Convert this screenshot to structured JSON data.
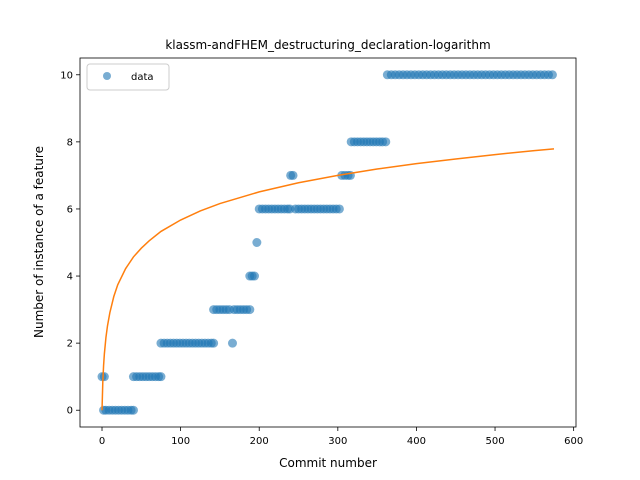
{
  "chart_data": {
    "type": "scatter",
    "title": "klassm-andFHEM_destructuring_declaration-logarithm",
    "xlabel": "Commit number",
    "ylabel": "Number of instance of a feature",
    "xlim": [
      -28,
      603
    ],
    "ylim": [
      -0.5,
      10.5
    ],
    "xticks": [
      0,
      100,
      200,
      300,
      400,
      500,
      600
    ],
    "yticks": [
      0,
      2,
      4,
      6,
      8,
      10
    ],
    "grid": false,
    "legend": {
      "placement": "top-left",
      "entries": [
        "data"
      ]
    },
    "colors": {
      "data": "#1f77b4",
      "fit": "#ff7f0e"
    },
    "series": [
      {
        "name": "data",
        "kind": "scatter",
        "points": [
          [
            0,
            1
          ],
          [
            3,
            1
          ],
          [
            2,
            0
          ],
          [
            5,
            0
          ],
          [
            9,
            0
          ],
          [
            13,
            0
          ],
          [
            17,
            0
          ],
          [
            21,
            0
          ],
          [
            25,
            0
          ],
          [
            29,
            0
          ],
          [
            33,
            0
          ],
          [
            37,
            0
          ],
          [
            40,
            0
          ],
          [
            40,
            1
          ],
          [
            44,
            1
          ],
          [
            48,
            1
          ],
          [
            52,
            1
          ],
          [
            56,
            1
          ],
          [
            60,
            1
          ],
          [
            64,
            1
          ],
          [
            68,
            1
          ],
          [
            72,
            1
          ],
          [
            75,
            1
          ],
          [
            75,
            2
          ],
          [
            79,
            2
          ],
          [
            83,
            2
          ],
          [
            87,
            2
          ],
          [
            91,
            2
          ],
          [
            95,
            2
          ],
          [
            99,
            2
          ],
          [
            103,
            2
          ],
          [
            107,
            2
          ],
          [
            111,
            2
          ],
          [
            115,
            2
          ],
          [
            119,
            2
          ],
          [
            123,
            2
          ],
          [
            127,
            2
          ],
          [
            131,
            2
          ],
          [
            135,
            2
          ],
          [
            139,
            2
          ],
          [
            142,
            2
          ],
          [
            142,
            3
          ],
          [
            146,
            3
          ],
          [
            150,
            3
          ],
          [
            154,
            3
          ],
          [
            158,
            3
          ],
          [
            162,
            3
          ],
          [
            166,
            2
          ],
          [
            168,
            3
          ],
          [
            172,
            3
          ],
          [
            176,
            3
          ],
          [
            180,
            3
          ],
          [
            184,
            3
          ],
          [
            188,
            3
          ],
          [
            188,
            4
          ],
          [
            191,
            4
          ],
          [
            194,
            4
          ],
          [
            197,
            5
          ],
          [
            200,
            6
          ],
          [
            204,
            6
          ],
          [
            208,
            6
          ],
          [
            212,
            6
          ],
          [
            216,
            6
          ],
          [
            220,
            6
          ],
          [
            224,
            6
          ],
          [
            228,
            6
          ],
          [
            232,
            6
          ],
          [
            236,
            6
          ],
          [
            239,
            6
          ],
          [
            240,
            7
          ],
          [
            243,
            7
          ],
          [
            246,
            6
          ],
          [
            250,
            6
          ],
          [
            254,
            6
          ],
          [
            258,
            6
          ],
          [
            262,
            6
          ],
          [
            266,
            6
          ],
          [
            270,
            6
          ],
          [
            274,
            6
          ],
          [
            278,
            6
          ],
          [
            282,
            6
          ],
          [
            286,
            6
          ],
          [
            290,
            6
          ],
          [
            294,
            6
          ],
          [
            298,
            6
          ],
          [
            302,
            6
          ],
          [
            305,
            7
          ],
          [
            309,
            7
          ],
          [
            313,
            7
          ],
          [
            316,
            7
          ],
          [
            317,
            8
          ],
          [
            321,
            8
          ],
          [
            325,
            8
          ],
          [
            329,
            8
          ],
          [
            333,
            8
          ],
          [
            337,
            8
          ],
          [
            341,
            8
          ],
          [
            345,
            8
          ],
          [
            349,
            8
          ],
          [
            353,
            8
          ],
          [
            357,
            8
          ],
          [
            361,
            8
          ],
          [
            363,
            10
          ],
          [
            368,
            10
          ],
          [
            373,
            10
          ],
          [
            378,
            10
          ],
          [
            383,
            10
          ],
          [
            388,
            10
          ],
          [
            393,
            10
          ],
          [
            398,
            10
          ],
          [
            403,
            10
          ],
          [
            408,
            10
          ],
          [
            413,
            10
          ],
          [
            418,
            10
          ],
          [
            423,
            10
          ],
          [
            428,
            10
          ],
          [
            433,
            10
          ],
          [
            438,
            10
          ],
          [
            443,
            10
          ],
          [
            448,
            10
          ],
          [
            453,
            10
          ],
          [
            458,
            10
          ],
          [
            463,
            10
          ],
          [
            468,
            10
          ],
          [
            473,
            10
          ],
          [
            478,
            10
          ],
          [
            483,
            10
          ],
          [
            488,
            10
          ],
          [
            493,
            10
          ],
          [
            498,
            10
          ],
          [
            503,
            10
          ],
          [
            508,
            10
          ],
          [
            513,
            10
          ],
          [
            518,
            10
          ],
          [
            523,
            10
          ],
          [
            528,
            10
          ],
          [
            533,
            10
          ],
          [
            538,
            10
          ],
          [
            543,
            10
          ],
          [
            548,
            10
          ],
          [
            553,
            10
          ],
          [
            558,
            10
          ],
          [
            563,
            10
          ],
          [
            568,
            10
          ],
          [
            573,
            10
          ]
        ]
      },
      {
        "kind": "line",
        "points": [
          [
            0,
            0
          ],
          [
            1,
            0.84
          ],
          [
            2,
            1.33
          ],
          [
            3,
            1.68
          ],
          [
            5,
            2.17
          ],
          [
            7,
            2.52
          ],
          [
            10,
            2.91
          ],
          [
            15,
            3.39
          ],
          [
            20,
            3.74
          ],
          [
            30,
            4.22
          ],
          [
            40,
            4.57
          ],
          [
            50,
            4.83
          ],
          [
            60,
            5.05
          ],
          [
            75,
            5.33
          ],
          [
            100,
            5.67
          ],
          [
            125,
            5.94
          ],
          [
            150,
            6.16
          ],
          [
            200,
            6.51
          ],
          [
            250,
            6.78
          ],
          [
            300,
            7.0
          ],
          [
            350,
            7.19
          ],
          [
            400,
            7.35
          ],
          [
            450,
            7.49
          ],
          [
            500,
            7.62
          ],
          [
            550,
            7.74
          ],
          [
            575,
            7.79
          ]
        ]
      }
    ]
  }
}
